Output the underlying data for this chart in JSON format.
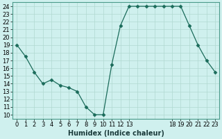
{
  "x": [
    0,
    1,
    2,
    3,
    4,
    5,
    6,
    7,
    8,
    9,
    10,
    11,
    12,
    13,
    14,
    15,
    16,
    17,
    18,
    19,
    20,
    21,
    22,
    23
  ],
  "y": [
    19,
    17.5,
    15.5,
    14,
    14.5,
    13.8,
    13.5,
    13,
    11,
    10,
    10,
    16.5,
    21.5,
    24,
    24,
    24,
    24,
    24,
    24,
    24,
    21.5,
    19,
    17,
    15.5
  ],
  "line_color": "#1a6b5a",
  "marker": "D",
  "marker_size": 2.5,
  "bg_color": "#cff0ee",
  "grid_major_color": "#b0d8d0",
  "grid_minor_color": "#d0eae6",
  "xlabel": "Humidex (Indice chaleur)",
  "xlim": [
    -0.5,
    23.5
  ],
  "ylim": [
    9.5,
    24.5
  ],
  "yticks": [
    10,
    11,
    12,
    13,
    14,
    15,
    16,
    17,
    18,
    19,
    20,
    21,
    22,
    23,
    24
  ],
  "xtick_positions": [
    0,
    1,
    2,
    3,
    4,
    5,
    6,
    7,
    8,
    9,
    10,
    11,
    12,
    13,
    18,
    19,
    20,
    21,
    22,
    23
  ],
  "xtick_labels": [
    "0",
    "1",
    "2",
    "3",
    "4",
    "5",
    "6",
    "7",
    "8",
    "9",
    "10",
    "11",
    "12",
    "13",
    "18",
    "19",
    "20",
    "21",
    "22",
    "23"
  ],
  "xlabel_fontsize": 7,
  "tick_fontsize": 6,
  "linewidth": 0.9
}
